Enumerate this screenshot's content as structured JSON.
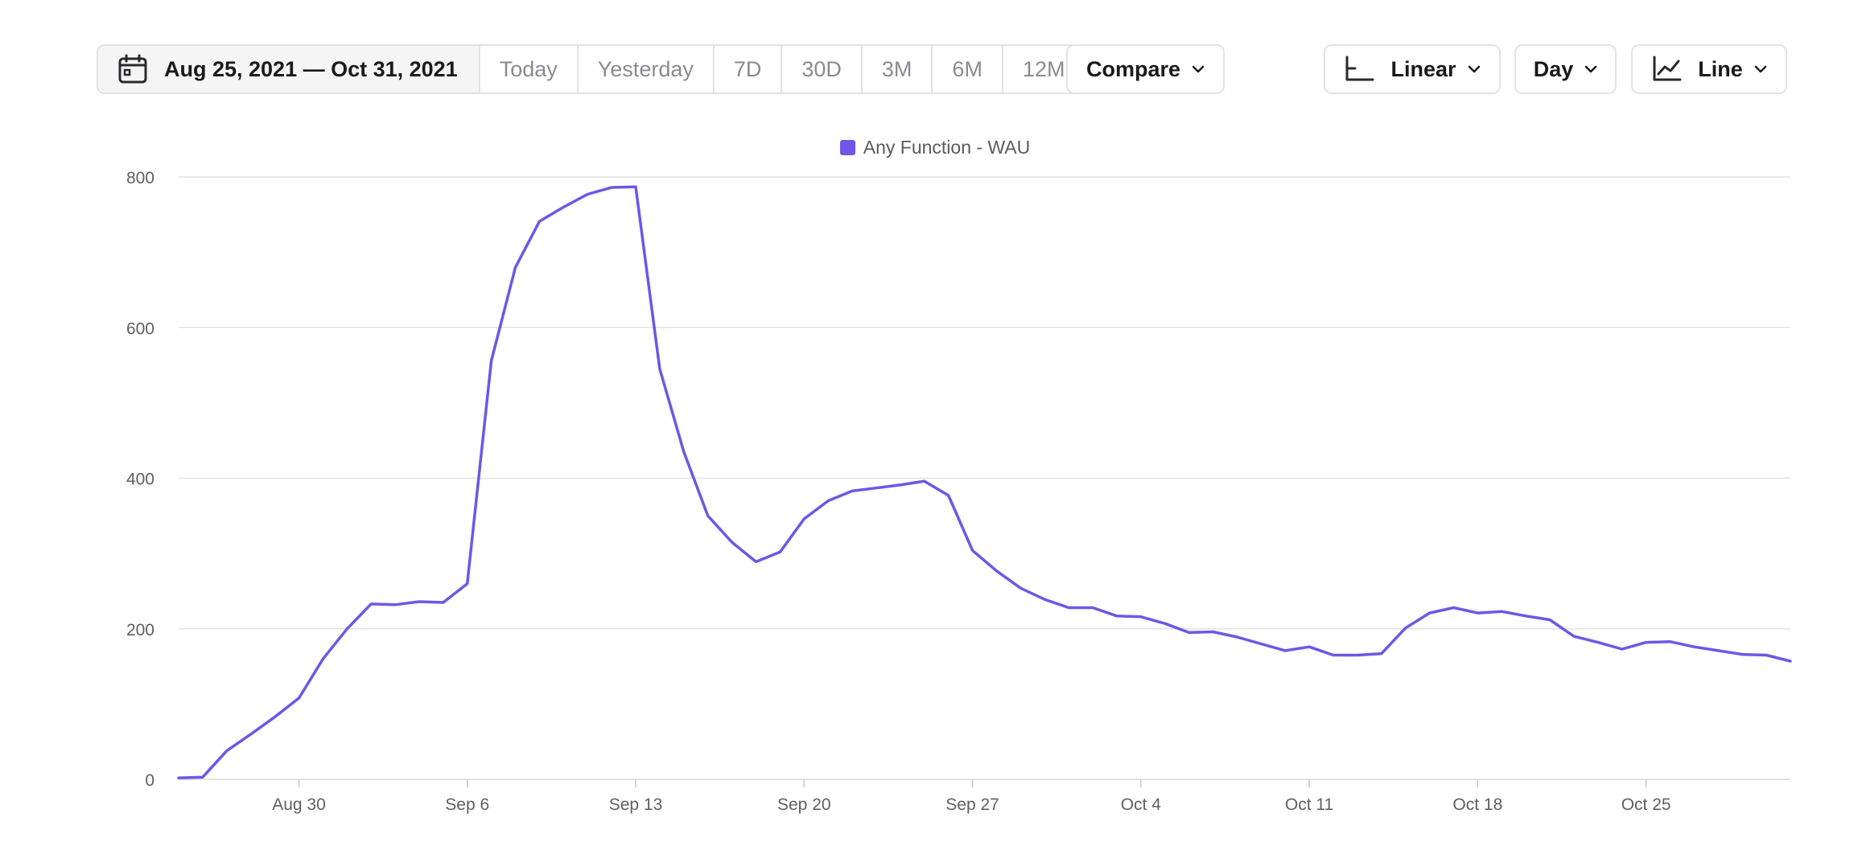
{
  "toolbar": {
    "date_range": "Aug 25, 2021 — Oct 31, 2021",
    "presets": [
      "Today",
      "Yesterday",
      "7D",
      "30D",
      "3M",
      "6M",
      "12M"
    ],
    "compare_label": "Compare",
    "scale_label": "Linear",
    "interval_label": "Day",
    "chart_type_label": "Line"
  },
  "icons": {
    "date": "calendar-icon",
    "dropdown": "chevron-down-icon",
    "scale": "axis-icon",
    "chart_type": "line-chart-icon"
  },
  "colors": {
    "series": "#6f56e8",
    "grid": "#e3e3e6",
    "axis_text": "#5f5f66"
  },
  "chart_data": {
    "type": "line",
    "legend_placement": "top-center",
    "grid": true,
    "ylim": [
      0,
      800
    ],
    "y_ticks": [
      0,
      200,
      400,
      600,
      800
    ],
    "x_range": [
      "2021-08-25",
      "2021-10-31"
    ],
    "x_ticks": [
      "Aug 30",
      "Sep 6",
      "Sep 13",
      "Sep 20",
      "Sep 27",
      "Oct 4",
      "Oct 11",
      "Oct 18",
      "Oct 25"
    ],
    "x_tick_dates": [
      "2021-08-30",
      "2021-09-06",
      "2021-09-13",
      "2021-09-20",
      "2021-09-27",
      "2021-10-04",
      "2021-10-11",
      "2021-10-18",
      "2021-10-25"
    ],
    "series": [
      {
        "name": "Any Function - WAU",
        "x": [
          "2021-08-25",
          "2021-08-26",
          "2021-08-27",
          "2021-08-28",
          "2021-08-29",
          "2021-08-30",
          "2021-08-31",
          "2021-09-01",
          "2021-09-02",
          "2021-09-03",
          "2021-09-04",
          "2021-09-05",
          "2021-09-06",
          "2021-09-07",
          "2021-09-08",
          "2021-09-09",
          "2021-09-10",
          "2021-09-11",
          "2021-09-12",
          "2021-09-13",
          "2021-09-14",
          "2021-09-15",
          "2021-09-16",
          "2021-09-17",
          "2021-09-18",
          "2021-09-19",
          "2021-09-20",
          "2021-09-21",
          "2021-09-22",
          "2021-09-23",
          "2021-09-24",
          "2021-09-25",
          "2021-09-26",
          "2021-09-27",
          "2021-09-28",
          "2021-09-29",
          "2021-09-30",
          "2021-10-01",
          "2021-10-02",
          "2021-10-03",
          "2021-10-04",
          "2021-10-05",
          "2021-10-06",
          "2021-10-07",
          "2021-10-08",
          "2021-10-09",
          "2021-10-10",
          "2021-10-11",
          "2021-10-12",
          "2021-10-13",
          "2021-10-14",
          "2021-10-15",
          "2021-10-16",
          "2021-10-17",
          "2021-10-18",
          "2021-10-19",
          "2021-10-20",
          "2021-10-21",
          "2021-10-22",
          "2021-10-23",
          "2021-10-24",
          "2021-10-25",
          "2021-10-26",
          "2021-10-27",
          "2021-10-28",
          "2021-10-29",
          "2021-10-30",
          "2021-10-31"
        ],
        "y": [
          2,
          3,
          38,
          60,
          83,
          108,
          160,
          200,
          233,
          232,
          236,
          235,
          260,
          556,
          680,
          741,
          760,
          777,
          786,
          787,
          545,
          435,
          350,
          315,
          289,
          302,
          346,
          370,
          383,
          387,
          391,
          396,
          377,
          304,
          277,
          254,
          239,
          228,
          228,
          217,
          216,
          207,
          195,
          196,
          189,
          180,
          171,
          176,
          165,
          165,
          167,
          201,
          221,
          228,
          221,
          223,
          217,
          212,
          190,
          182,
          173,
          182,
          183,
          176,
          171,
          166,
          165,
          157
        ]
      }
    ]
  }
}
